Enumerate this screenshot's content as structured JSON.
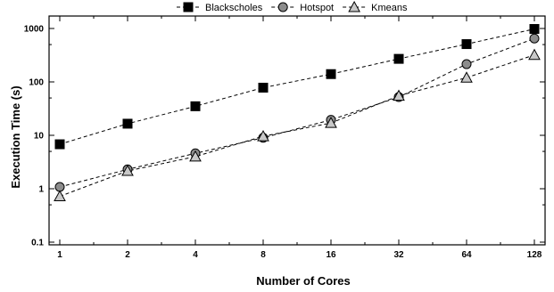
{
  "chart_data": {
    "type": "line",
    "title": "",
    "xlabel": "Number of Cores",
    "ylabel": "Execution Time (s)",
    "x_scale": "log2",
    "y_scale": "log10",
    "categories": [
      "1",
      "2",
      "4",
      "8",
      "16",
      "32",
      "64",
      "128"
    ],
    "x": [
      1,
      2,
      4,
      8,
      16,
      32,
      64,
      128
    ],
    "ylim": [
      0.1,
      1000
    ],
    "yticks": [
      "0.1",
      "1",
      "10",
      "100",
      "1000"
    ],
    "legend_position": "top-center",
    "grid": false,
    "series": [
      {
        "name": "Blackscholes",
        "marker": "square",
        "color": "#000000",
        "values": [
          6.8,
          16.5,
          35,
          78,
          140,
          270,
          510,
          980
        ]
      },
      {
        "name": "Hotspot",
        "marker": "circle",
        "color": "#8c8c8c",
        "values": [
          1.08,
          2.3,
          4.6,
          9.0,
          19.5,
          52,
          215,
          650
        ]
      },
      {
        "name": "Kmeans",
        "marker": "triangle",
        "color": "#c8c8c8",
        "values": [
          0.72,
          2.15,
          4.0,
          9.6,
          17,
          55,
          120,
          320
        ]
      }
    ]
  }
}
